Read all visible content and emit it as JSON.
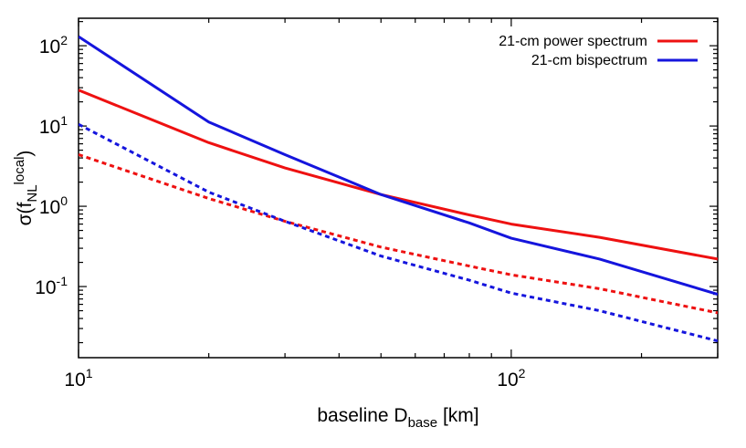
{
  "chart_data": {
    "type": "line",
    "title": "",
    "xlabel": {
      "main": "baseline D",
      "sub": "base",
      "tail": " [km]"
    },
    "ylabel": {
      "pre": "σ(f",
      "sub": "NL",
      "sup": "local",
      "post": ")"
    },
    "xscale": "log",
    "yscale": "log",
    "xlim": [
      10,
      300
    ],
    "ylim": [
      0.013,
      220
    ],
    "grid": false,
    "legend_position": "top-right",
    "x_ticks": [
      {
        "value": 10,
        "base": "10",
        "exp": "1"
      },
      {
        "value": 100,
        "base": "10",
        "exp": "2"
      }
    ],
    "y_ticks": [
      {
        "value": 0.1,
        "base": "10",
        "exp": "-1"
      },
      {
        "value": 1,
        "base": "10",
        "exp": "0"
      },
      {
        "value": 10,
        "base": "10",
        "exp": "1"
      },
      {
        "value": 100,
        "base": "10",
        "exp": "2"
      }
    ],
    "series": [
      {
        "name": "21-cm power spectrum",
        "color": "#ee1111",
        "dash": "solid",
        "x": [
          10,
          20,
          30,
          50,
          80,
          100,
          160,
          300
        ],
        "y": [
          28,
          6.2,
          3.0,
          1.4,
          0.78,
          0.6,
          0.41,
          0.22
        ]
      },
      {
        "name": "21-cm bispectrum",
        "color": "#1515dd",
        "dash": "solid",
        "x": [
          10,
          20,
          30,
          50,
          80,
          100,
          160,
          300
        ],
        "y": [
          130,
          11.2,
          4.4,
          1.4,
          0.62,
          0.4,
          0.22,
          0.08
        ]
      },
      {
        "name": "",
        "color": "#ee1111",
        "dash": "dotted",
        "x": [
          10,
          20,
          30,
          50,
          80,
          100,
          160,
          300
        ],
        "y": [
          4.4,
          1.25,
          0.65,
          0.31,
          0.18,
          0.14,
          0.094,
          0.047
        ]
      },
      {
        "name": "",
        "color": "#1515dd",
        "dash": "dotted",
        "x": [
          10,
          20,
          30,
          50,
          80,
          100,
          160,
          300
        ],
        "y": [
          10.5,
          1.5,
          0.65,
          0.24,
          0.12,
          0.083,
          0.05,
          0.021
        ]
      }
    ]
  }
}
